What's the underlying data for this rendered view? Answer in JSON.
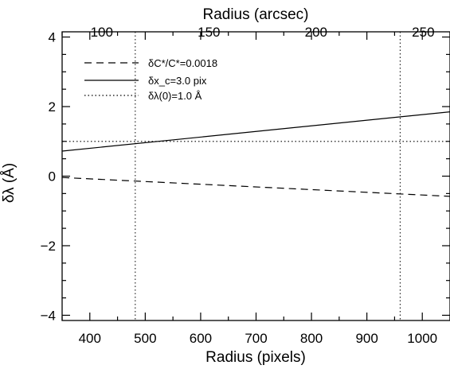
{
  "chart_data": {
    "type": "line",
    "xlabel": "Radius (pixels)",
    "ylabel": "δλ (Å)",
    "x2label": "Radius (arcsec)",
    "xlim": [
      350,
      1050
    ],
    "ylim": [
      -4.15,
      4.15
    ],
    "x2lim": [
      81.5,
      262.5
    ],
    "xticks": [
      400,
      500,
      600,
      700,
      800,
      900,
      1000
    ],
    "xtick_labels": [
      "400",
      "500",
      "600",
      "700",
      "800",
      "900",
      "1000"
    ],
    "yticks": [
      -4,
      -2,
      0,
      2,
      4
    ],
    "ytick_labels": [
      "−4",
      "−2",
      "0",
      "2",
      "4"
    ],
    "x2ticks": [
      100,
      150,
      200,
      250
    ],
    "x2tick_labels": [
      "100",
      "150",
      "200",
      "250"
    ],
    "series": [
      {
        "name": "δC*/C*=0.0018",
        "style": "dashed",
        "x": [
          350,
          1050
        ],
        "y": [
          -0.04,
          -0.58
        ]
      },
      {
        "name": "δx_c=3.0 pix",
        "style": "solid",
        "x": [
          350,
          1050
        ],
        "y": [
          0.72,
          1.85
        ]
      },
      {
        "name": "δλ(0)=1.0 Å",
        "style": "dotted",
        "x": [
          350,
          1050
        ],
        "y": [
          1.0,
          1.0
        ]
      }
    ],
    "reference_lines": [
      {
        "orientation": "vertical",
        "x": 482,
        "style": "dotted"
      },
      {
        "orientation": "vertical",
        "x": 960,
        "style": "dotted"
      }
    ],
    "legend": {
      "position": "top-left",
      "entries": [
        {
          "style": "dashed",
          "label": "δC*/C*=0.0018"
        },
        {
          "style": "solid",
          "label": "δx_c=3.0 pix"
        },
        {
          "style": "dotted",
          "label": "δλ(0)=1.0 Å"
        }
      ]
    },
    "grid": false,
    "colors": {
      "line": "#000000",
      "background": "#ffffff"
    }
  }
}
